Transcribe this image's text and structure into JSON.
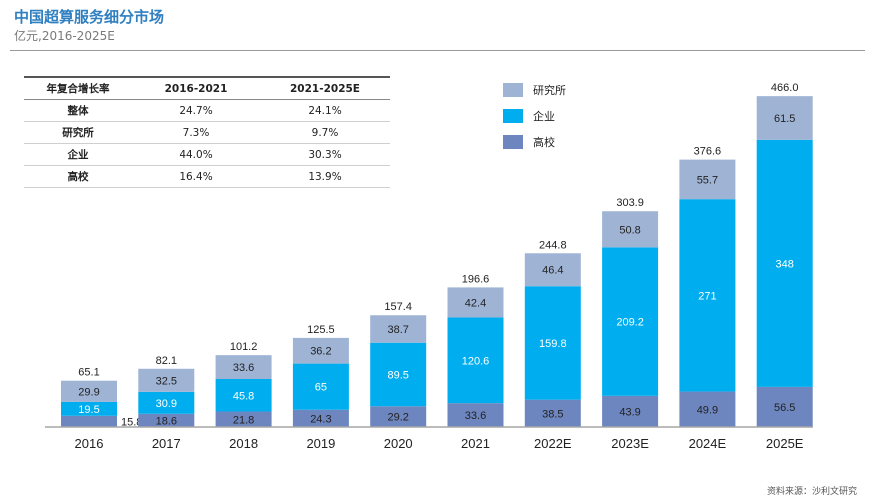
{
  "header": {
    "title": "中国超算服务细分市场",
    "subtitle": "亿元,2016-2025E"
  },
  "table": {
    "headers": [
      "年复合增长率",
      "2016-2021",
      "2021-2025E"
    ],
    "rows": [
      [
        "整体",
        "24.7%",
        "24.1%"
      ],
      [
        "研究所",
        "7.3%",
        "9.7%"
      ],
      [
        "企业",
        "44.0%",
        "30.3%"
      ],
      [
        "高校",
        "16.4%",
        "13.9%"
      ]
    ]
  },
  "source": "资料来源：沙利文研究",
  "colors": {
    "research": "#9fb4d5",
    "enterprise": "#00aeef",
    "university": "#6d86bf",
    "axis": "#a6a6a6"
  },
  "chart_data": {
    "type": "bar",
    "stacked": true,
    "categories": [
      "2016",
      "2017",
      "2018",
      "2019",
      "2020",
      "2021",
      "2022E",
      "2023E",
      "2024E",
      "2025E"
    ],
    "series": [
      {
        "name": "高校",
        "values": [
          15.8,
          18.6,
          21.8,
          24.3,
          29.2,
          33.6,
          38.5,
          43.9,
          49.9,
          56.5
        ]
      },
      {
        "name": "企业",
        "values": [
          19.5,
          30.9,
          45.8,
          65.0,
          89.5,
          120.6,
          159.8,
          209.2,
          271.0,
          348.0
        ]
      },
      {
        "name": "研究所",
        "values": [
          29.9,
          32.5,
          33.6,
          36.2,
          38.7,
          42.4,
          46.4,
          50.8,
          55.7,
          61.5
        ]
      }
    ],
    "totals": [
      65.1,
      82.1,
      101.2,
      125.5,
      157.4,
      196.6,
      244.8,
      303.9,
      376.6,
      466.0
    ],
    "legend": [
      "研究所",
      "企业",
      "高校"
    ],
    "legend_position": "top-center",
    "grid": false
  }
}
